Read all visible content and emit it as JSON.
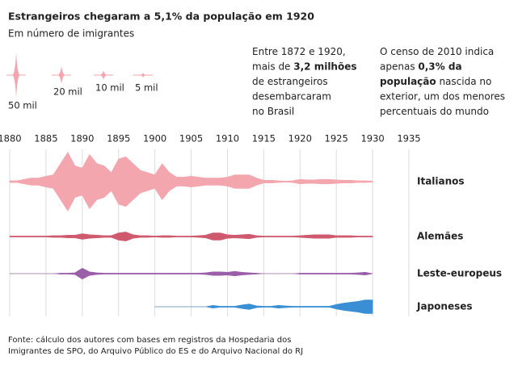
{
  "chart_data": {
    "type": "stream",
    "title": "Estrangeiros chegaram a 5,1% da população em 1920",
    "subtitle": "Em número de imigrantes",
    "size_legend": [
      {
        "value": 50,
        "label": "50 mil"
      },
      {
        "value": 20,
        "label": "20 mil"
      },
      {
        "value": 10,
        "label": "10 mil"
      },
      {
        "value": 5,
        "label": "5 mil"
      }
    ],
    "size_legend_color": "#f4a6ae",
    "annotations": [
      {
        "lines": [
          [
            {
              "text": "Entre 1872 e 1920,"
            }
          ],
          [
            {
              "text": "mais de "
            },
            {
              "text": "3,2 milhões",
              "bold": true
            }
          ],
          [
            {
              "text": "de estrangeiros"
            }
          ],
          [
            {
              "text": "desembarcaram"
            }
          ],
          [
            {
              "text": "no Brasil"
            }
          ]
        ]
      },
      {
        "lines": [
          [
            {
              "text": "O censo de 2010 indica"
            }
          ],
          [
            {
              "text": "apenas "
            },
            {
              "text": "0,3% da",
              "bold": true
            }
          ],
          [
            {
              "text": "população",
              "bold": true
            },
            {
              "text": " nascida no"
            }
          ],
          [
            {
              "text": "exterior, um dos menores"
            }
          ],
          [
            {
              "text": "percentuais do mundo"
            }
          ]
        ]
      }
    ],
    "xlim": [
      1880,
      1935
    ],
    "xticks": [
      1880,
      1885,
      1890,
      1895,
      1900,
      1905,
      1910,
      1915,
      1920,
      1925,
      1930,
      1935
    ],
    "grid": true,
    "x": [
      1880,
      1881,
      1882,
      1883,
      1884,
      1885,
      1886,
      1887,
      1888,
      1889,
      1890,
      1891,
      1892,
      1893,
      1894,
      1895,
      1896,
      1897,
      1898,
      1899,
      1900,
      1901,
      1902,
      1903,
      1904,
      1905,
      1906,
      1907,
      1908,
      1909,
      1910,
      1911,
      1912,
      1913,
      1914,
      1915,
      1916,
      1917,
      1918,
      1919,
      1920,
      1921,
      1922,
      1923,
      1924,
      1925,
      1926,
      1927,
      1928,
      1929,
      1930
    ],
    "series": [
      {
        "name": "Italianos",
        "color": "#f4a6ae",
        "values": [
          2,
          2,
          5,
          8,
          8,
          12,
          15,
          40,
          65,
          35,
          30,
          60,
          40,
          35,
          20,
          50,
          55,
          40,
          25,
          20,
          15,
          40,
          20,
          10,
          10,
          12,
          10,
          8,
          8,
          8,
          10,
          15,
          15,
          15,
          8,
          3,
          3,
          2,
          1,
          2,
          5,
          4,
          4,
          5,
          5,
          4,
          3,
          3,
          2,
          2,
          1
        ]
      },
      {
        "name": "Alemães",
        "color": "#cf5a6e",
        "values": [
          1,
          1,
          1,
          1,
          1,
          1,
          2,
          2,
          3,
          3,
          6,
          4,
          3,
          2,
          2,
          8,
          10,
          4,
          2,
          2,
          1,
          2,
          2,
          1,
          1,
          1,
          2,
          3,
          8,
          8,
          4,
          3,
          4,
          5,
          2,
          1,
          1,
          1,
          1,
          1,
          2,
          3,
          4,
          4,
          4,
          2,
          2,
          2,
          1,
          1,
          1
        ]
      },
      {
        "name": "Leste-europeus",
        "color": "#9b5ea8",
        "values": [
          0,
          0,
          0,
          0,
          0,
          0,
          0,
          1,
          1,
          2,
          12,
          4,
          2,
          1,
          1,
          1,
          1,
          1,
          1,
          1,
          1,
          1,
          1,
          1,
          1,
          1,
          1,
          2,
          4,
          4,
          3,
          5,
          3,
          2,
          1,
          0,
          0,
          0,
          0,
          0,
          1,
          1,
          1,
          1,
          1,
          1,
          1,
          1,
          2,
          3,
          0
        ]
      },
      {
        "name": "Japoneses",
        "color": "#3a8fd4",
        "values": [
          null,
          null,
          null,
          null,
          null,
          null,
          null,
          null,
          null,
          null,
          null,
          null,
          null,
          null,
          null,
          null,
          null,
          null,
          null,
          null,
          0,
          0,
          0,
          0,
          0,
          0,
          0,
          0,
          3,
          1,
          1,
          1,
          4,
          6,
          2,
          1,
          1,
          3,
          2,
          1,
          1,
          1,
          1,
          1,
          1,
          5,
          8,
          10,
          12,
          15,
          15
        ]
      }
    ],
    "source": [
      "Fonte: cálculo dos autores com bases em registros da Hospedaria dos",
      "Imigrantes de SPO, do Arquivo Público do ES e do Arquivo Nacional do RJ"
    ]
  }
}
